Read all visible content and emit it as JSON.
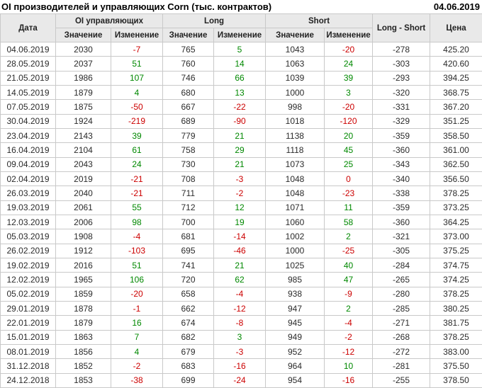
{
  "header": {
    "title": "OI производителей и управляющих Corn (тыс. контрактов)",
    "report_date": "04.06.2019"
  },
  "colors": {
    "positive": "#008800",
    "negative": "#cc0000",
    "header_bg": "#e9e9e9",
    "border": "#c9c9c9",
    "text": "#2b2b2b"
  },
  "chart_data": {
    "type": "table",
    "title": "OI производителей и управляющих Corn (тыс. контрактов)",
    "column_groups": [
      {
        "label": "Дата"
      },
      {
        "label": "OI управляющих"
      },
      {
        "label": "Long"
      },
      {
        "label": "Short"
      },
      {
        "label": "Long - Short"
      },
      {
        "label": "Цена"
      }
    ],
    "sub_headers": [
      "Значение",
      "Изменение",
      "Значение",
      "Изменение",
      "Значение",
      "Изменение"
    ],
    "columns": [
      "Дата",
      "OI Значение",
      "OI Изменение",
      "Long Значение",
      "Long Изменение",
      "Short Значение",
      "Short Изменение",
      "Long - Short",
      "Цена"
    ],
    "change_column_indices": [
      2,
      4,
      6
    ],
    "rows": [
      [
        "04.06.2019",
        2030,
        -7,
        765,
        5,
        1043,
        -20,
        -278,
        "425.20"
      ],
      [
        "28.05.2019",
        2037,
        51,
        760,
        14,
        1063,
        24,
        -303,
        "420.60"
      ],
      [
        "21.05.2019",
        1986,
        107,
        746,
        66,
        1039,
        39,
        -293,
        "394.25"
      ],
      [
        "14.05.2019",
        1879,
        4,
        680,
        13,
        1000,
        3,
        -320,
        "368.75"
      ],
      [
        "07.05.2019",
        1875,
        -50,
        667,
        -22,
        998,
        -20,
        -331,
        "367.20"
      ],
      [
        "30.04.2019",
        1924,
        -219,
        689,
        -90,
        1018,
        -120,
        -329,
        "351.25"
      ],
      [
        "23.04.2019",
        2143,
        39,
        779,
        21,
        1138,
        20,
        -359,
        "358.50"
      ],
      [
        "16.04.2019",
        2104,
        61,
        758,
        29,
        1118,
        45,
        -360,
        "361.00"
      ],
      [
        "09.04.2019",
        2043,
        24,
        730,
        21,
        1073,
        25,
        -343,
        "362.50"
      ],
      [
        "02.04.2019",
        2019,
        -21,
        708,
        -3,
        1048,
        0,
        -340,
        "356.50"
      ],
      [
        "26.03.2019",
        2040,
        -21,
        711,
        -2,
        1048,
        -23,
        -338,
        "378.25"
      ],
      [
        "19.03.2019",
        2061,
        55,
        712,
        12,
        1071,
        11,
        -359,
        "373.25"
      ],
      [
        "12.03.2019",
        2006,
        98,
        700,
        19,
        1060,
        58,
        -360,
        "364.25"
      ],
      [
        "05.03.2019",
        1908,
        -4,
        681,
        -14,
        1002,
        2,
        -321,
        "373.00"
      ],
      [
        "26.02.2019",
        1912,
        -103,
        695,
        -46,
        1000,
        -25,
        -305,
        "375.25"
      ],
      [
        "19.02.2019",
        2016,
        51,
        741,
        21,
        1025,
        40,
        -284,
        "374.75"
      ],
      [
        "12.02.2019",
        1965,
        106,
        720,
        62,
        985,
        47,
        -265,
        "374.25"
      ],
      [
        "05.02.2019",
        1859,
        -20,
        658,
        -4,
        938,
        -9,
        -280,
        "378.25"
      ],
      [
        "29.01.2019",
        1878,
        -1,
        662,
        -12,
        947,
        2,
        -285,
        "380.25"
      ],
      [
        "22.01.2019",
        1879,
        16,
        674,
        -8,
        945,
        -4,
        -271,
        "381.75"
      ],
      [
        "15.01.2019",
        1863,
        7,
        682,
        3,
        949,
        -2,
        -268,
        "378.25"
      ],
      [
        "08.01.2019",
        1856,
        4,
        679,
        -3,
        952,
        -12,
        -272,
        "383.00"
      ],
      [
        "31.12.2018",
        1852,
        -2,
        683,
        -16,
        964,
        10,
        -281,
        "375.50"
      ],
      [
        "24.12.2018",
        1853,
        -38,
        699,
        -24,
        954,
        -16,
        -255,
        "378.50"
      ]
    ]
  }
}
